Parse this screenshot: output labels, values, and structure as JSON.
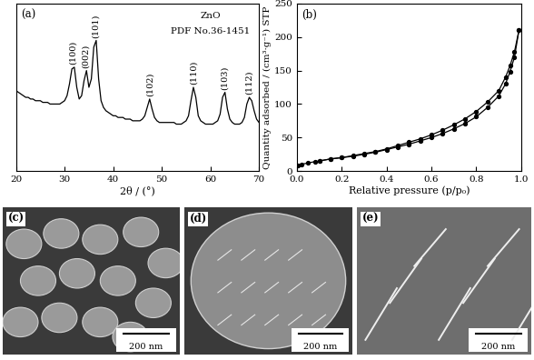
{
  "chart_data": [
    {
      "type": "line",
      "panel": "(a)",
      "xlabel": "2θ / (°)",
      "xlim": [
        20,
        70
      ],
      "xticks": [
        20,
        30,
        40,
        50,
        60,
        70
      ],
      "ylim": [
        0,
        100
      ],
      "tick_labels": "x",
      "texts": [
        "ZnO",
        "PDF No.36-1451"
      ],
      "annotations": [
        {
          "text": "(100)",
          "x": 31.8
        },
        {
          "text": "(002)",
          "x": 34.4
        },
        {
          "text": "(101)",
          "x": 36.3
        },
        {
          "text": "(102)",
          "x": 47.5
        },
        {
          "text": "(110)",
          "x": 56.6
        },
        {
          "text": "(103)",
          "x": 62.9
        },
        {
          "text": "(112)",
          "x": 68.0
        }
      ],
      "series": [
        {
          "color": "#000000",
          "line_style": "solid",
          "x": [
            20,
            20.5,
            21,
            21.5,
            22,
            22.5,
            23,
            23.5,
            24,
            24.5,
            25,
            25.5,
            26,
            26.5,
            27,
            27.5,
            28,
            28.5,
            29,
            29.5,
            30,
            30.5,
            31,
            31.5,
            32,
            32.5,
            33,
            33.5,
            34,
            34.5,
            35,
            35.5,
            36,
            36.5,
            37,
            37.5,
            38,
            38.5,
            39,
            39.5,
            40,
            40.5,
            41,
            41.5,
            42,
            42.5,
            43,
            43.5,
            44,
            44.5,
            45,
            45.5,
            46,
            46.5,
            47,
            47.5,
            48,
            48.5,
            49,
            49.5,
            50,
            50.5,
            51,
            51.5,
            52,
            52.5,
            53,
            53.5,
            54,
            54.5,
            55,
            55.5,
            56,
            56.5,
            57,
            57.5,
            58,
            58.5,
            59,
            59.5,
            60,
            60.5,
            61,
            61.5,
            62,
            62.5,
            63,
            63.5,
            64,
            64.5,
            65,
            65.5,
            66,
            66.5,
            67,
            67.5,
            68,
            68.5,
            69,
            69.5,
            70
          ],
          "values": [
            48,
            47,
            46,
            45,
            44,
            44,
            43,
            43,
            42,
            42,
            42,
            41,
            41,
            41,
            40,
            40,
            40,
            40,
            40,
            41,
            42,
            45,
            52,
            61,
            62,
            50,
            43,
            45,
            54,
            60,
            50,
            55,
            74,
            78,
            55,
            42,
            38,
            36,
            35,
            34,
            33,
            33,
            32,
            32,
            32,
            31,
            31,
            31,
            30,
            30,
            30,
            30,
            31,
            33,
            38,
            43,
            37,
            32,
            30,
            29,
            29,
            29,
            29,
            29,
            29,
            29,
            28,
            28,
            28,
            29,
            30,
            33,
            42,
            50,
            44,
            33,
            30,
            29,
            28,
            28,
            28,
            28,
            29,
            30,
            34,
            44,
            47,
            37,
            31,
            29,
            28,
            28,
            28,
            29,
            32,
            40,
            44,
            42,
            36,
            31,
            29
          ]
        }
      ]
    },
    {
      "type": "line",
      "panel": "(b)",
      "xlabel": "Relative pressure (p/p₀)",
      "ylabel": "Quantity adsorbed / (cm³·g⁻¹) STP",
      "xlim": [
        0.0,
        1.0
      ],
      "xticks": [
        0.0,
        0.2,
        0.4,
        0.6,
        0.8,
        1.0
      ],
      "ylim": [
        0,
        250
      ],
      "yticks": [
        0,
        50,
        100,
        150,
        200,
        250
      ],
      "series": [
        {
          "color": "#000000",
          "marker": "o",
          "line_style": "solid",
          "x": [
            0.005,
            0.02,
            0.05,
            0.08,
            0.1,
            0.15,
            0.2,
            0.25,
            0.3,
            0.35,
            0.4,
            0.45,
            0.5,
            0.55,
            0.6,
            0.65,
            0.7,
            0.75,
            0.8,
            0.85,
            0.9,
            0.93,
            0.95,
            0.97,
            0.99
          ],
          "values": [
            8,
            10,
            12,
            14,
            15,
            18,
            20,
            22,
            25,
            28,
            32,
            36,
            40,
            45,
            50,
            56,
            63,
            71,
            81,
            95,
            112,
            130,
            148,
            170,
            210
          ]
        },
        {
          "color": "#000000",
          "marker": "o",
          "line_style": "solid",
          "x": [
            0.99,
            0.97,
            0.95,
            0.93,
            0.9,
            0.85,
            0.8,
            0.75,
            0.7,
            0.65,
            0.6,
            0.55,
            0.5,
            0.45,
            0.4,
            0.35,
            0.3,
            0.25,
            0.2,
            0.15,
            0.1
          ],
          "values": [
            210,
            178,
            157,
            140,
            120,
            103,
            89,
            78,
            69,
            61,
            54,
            48,
            43,
            38,
            33,
            29,
            26,
            23,
            20,
            18,
            15
          ]
        }
      ]
    }
  ],
  "images": [
    {
      "label": "(c)",
      "scale_bar": "200 nm"
    },
    {
      "label": "(d)",
      "scale_bar": "200 nm"
    },
    {
      "label": "(e)",
      "scale_bar": "200 nm"
    }
  ]
}
